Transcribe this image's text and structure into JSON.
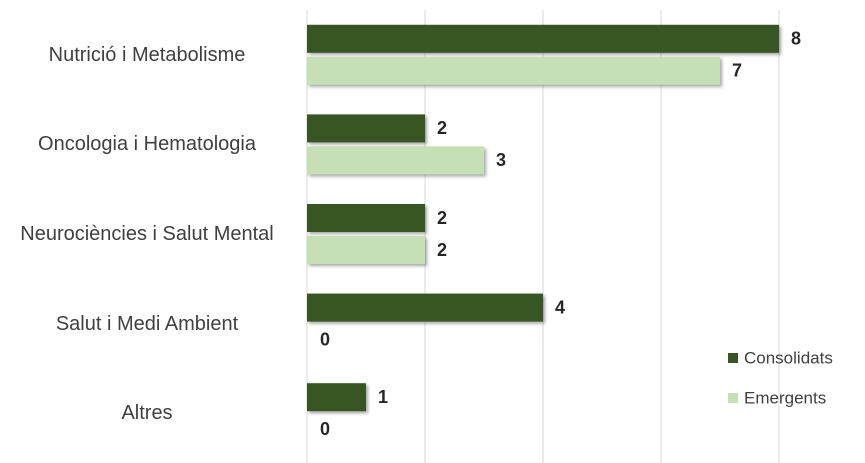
{
  "chart_data": {
    "type": "bar",
    "orientation": "horizontal",
    "categories": [
      "Nutrició i Metabolisme",
      "Oncologia i Hematologia",
      "Neurociències i Salut Mental",
      "Salut i Medi Ambient",
      "Altres"
    ],
    "series": [
      {
        "name": "Consolidats",
        "color": "#375623",
        "values": [
          8,
          2,
          2,
          4,
          1
        ]
      },
      {
        "name": "Emergents",
        "color": "#c5e0b4",
        "values": [
          7,
          3,
          2,
          0,
          0
        ]
      }
    ],
    "xlim": [
      0,
      8
    ],
    "xticks": [
      0,
      2,
      4,
      6,
      8
    ],
    "grid": true,
    "legend": "lower right"
  }
}
